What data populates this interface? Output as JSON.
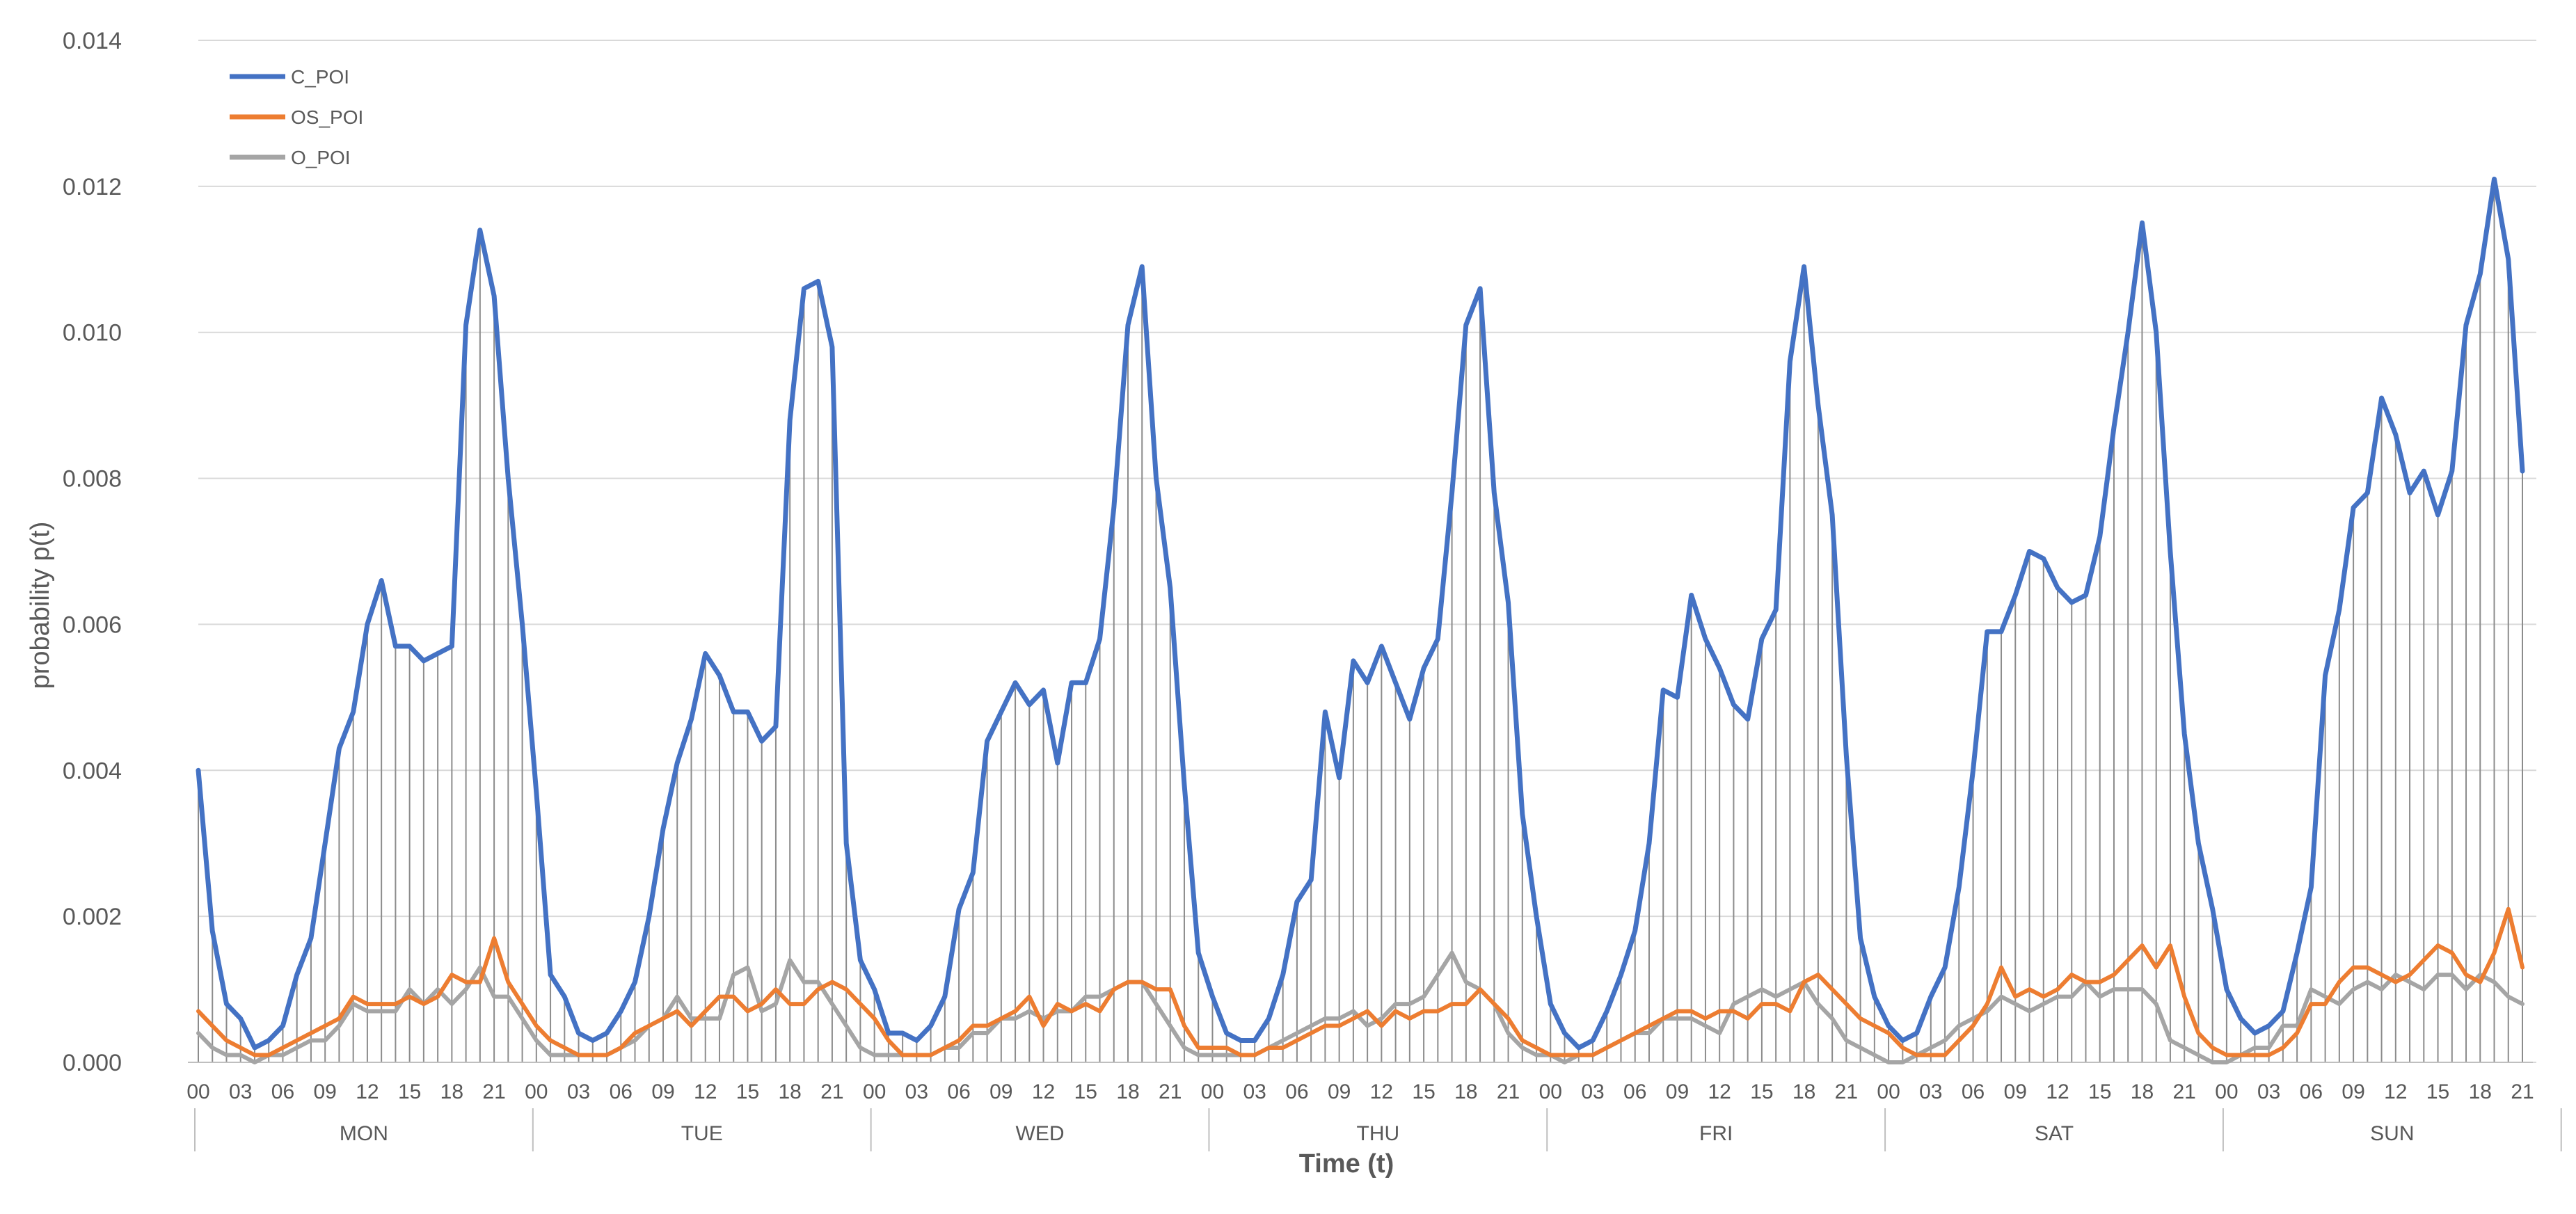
{
  "chart_data": {
    "type": "line",
    "xlabel": "Time (t)",
    "ylabel": "probability p(t)",
    "ylim": [
      0,
      0.014
    ],
    "yticks": [
      "0.000",
      "0.002",
      "0.004",
      "0.006",
      "0.008",
      "0.010",
      "0.012",
      "0.014"
    ],
    "hour_tick_labels": [
      "00",
      "03",
      "06",
      "09",
      "12",
      "15",
      "18",
      "21"
    ],
    "days": [
      "MON",
      "TUE",
      "WED",
      "THU",
      "FRI",
      "SAT",
      "SUN"
    ],
    "grid": true,
    "legend_position": "top-left",
    "drop_lines": true,
    "series": [
      {
        "name": "C_POI",
        "color": "#4472C4",
        "values": [
          0.004,
          0.0018,
          0.0008,
          0.0006,
          0.0002,
          0.0003,
          0.0005,
          0.0012,
          0.0017,
          0.003,
          0.0043,
          0.0048,
          0.006,
          0.0066,
          0.0057,
          0.0057,
          0.0055,
          0.0056,
          0.0057,
          0.0101,
          0.0114,
          0.0105,
          0.008,
          0.006,
          0.0037,
          0.0012,
          0.0009,
          0.0004,
          0.0003,
          0.0004,
          0.0007,
          0.0011,
          0.002,
          0.0032,
          0.0041,
          0.0047,
          0.0056,
          0.0053,
          0.0048,
          0.0048,
          0.0044,
          0.0046,
          0.0088,
          0.0106,
          0.0107,
          0.0098,
          0.003,
          0.0014,
          0.001,
          0.0004,
          0.0004,
          0.0003,
          0.0005,
          0.0009,
          0.0021,
          0.0026,
          0.0044,
          0.0048,
          0.0052,
          0.0049,
          0.0051,
          0.0041,
          0.0052,
          0.0052,
          0.0058,
          0.0076,
          0.0101,
          0.0109,
          0.008,
          0.0065,
          0.0038,
          0.0015,
          0.0009,
          0.0004,
          0.0003,
          0.0003,
          0.0006,
          0.0012,
          0.0022,
          0.0025,
          0.0048,
          0.0039,
          0.0055,
          0.0052,
          0.0057,
          0.0052,
          0.0047,
          0.0054,
          0.0058,
          0.0078,
          0.0101,
          0.0106,
          0.0078,
          0.0063,
          0.0034,
          0.002,
          0.0008,
          0.0004,
          0.0002,
          0.0003,
          0.0007,
          0.0012,
          0.0018,
          0.003,
          0.0051,
          0.005,
          0.0064,
          0.0058,
          0.0054,
          0.0049,
          0.0047,
          0.0058,
          0.0062,
          0.0096,
          0.0109,
          0.009,
          0.0075,
          0.0042,
          0.0017,
          0.0009,
          0.0005,
          0.0003,
          0.0004,
          0.0009,
          0.0013,
          0.0024,
          0.004,
          0.0059,
          0.0059,
          0.0064,
          0.007,
          0.0069,
          0.0065,
          0.0063,
          0.0064,
          0.0072,
          0.0087,
          0.01,
          0.0115,
          0.01,
          0.007,
          0.0045,
          0.003,
          0.0021,
          0.001,
          0.0006,
          0.0004,
          0.0005,
          0.0007,
          0.0015,
          0.0024,
          0.0053,
          0.0062,
          0.0076,
          0.0078,
          0.0091,
          0.0086,
          0.0078,
          0.0081,
          0.0075,
          0.0081,
          0.0101,
          0.0108,
          0.0121,
          0.011,
          0.0081
        ]
      },
      {
        "name": "OS_POI",
        "color": "#ED7D31",
        "values": [
          0.0007,
          0.0005,
          0.0003,
          0.0002,
          0.0001,
          0.0001,
          0.0002,
          0.0003,
          0.0004,
          0.0005,
          0.0006,
          0.0009,
          0.0008,
          0.0008,
          0.0008,
          0.0009,
          0.0008,
          0.0009,
          0.0012,
          0.0011,
          0.0011,
          0.0017,
          0.0011,
          0.0008,
          0.0005,
          0.0003,
          0.0002,
          0.0001,
          0.0001,
          0.0001,
          0.0002,
          0.0004,
          0.0005,
          0.0006,
          0.0007,
          0.0005,
          0.0007,
          0.0009,
          0.0009,
          0.0007,
          0.0008,
          0.001,
          0.0008,
          0.0008,
          0.001,
          0.0011,
          0.001,
          0.0008,
          0.0006,
          0.0003,
          0.0001,
          0.0001,
          0.0001,
          0.0002,
          0.0003,
          0.0005,
          0.0005,
          0.0006,
          0.0007,
          0.0009,
          0.0005,
          0.0008,
          0.0007,
          0.0008,
          0.0007,
          0.001,
          0.0011,
          0.0011,
          0.001,
          0.001,
          0.0005,
          0.0002,
          0.0002,
          0.0002,
          0.0001,
          0.0001,
          0.0002,
          0.0002,
          0.0003,
          0.0004,
          0.0005,
          0.0005,
          0.0006,
          0.0007,
          0.0005,
          0.0007,
          0.0006,
          0.0007,
          0.0007,
          0.0008,
          0.0008,
          0.001,
          0.0008,
          0.0006,
          0.0003,
          0.0002,
          0.0001,
          0.0001,
          0.0001,
          0.0001,
          0.0002,
          0.0003,
          0.0004,
          0.0005,
          0.0006,
          0.0007,
          0.0007,
          0.0006,
          0.0007,
          0.0007,
          0.0006,
          0.0008,
          0.0008,
          0.0007,
          0.0011,
          0.0012,
          0.001,
          0.0008,
          0.0006,
          0.0005,
          0.0004,
          0.0002,
          0.0001,
          0.0001,
          0.0001,
          0.0003,
          0.0005,
          0.0008,
          0.0013,
          0.0009,
          0.001,
          0.0009,
          0.001,
          0.0012,
          0.0011,
          0.0011,
          0.0012,
          0.0014,
          0.0016,
          0.0013,
          0.0016,
          0.0009,
          0.0004,
          0.0002,
          0.0001,
          0.0001,
          0.0001,
          0.0001,
          0.0002,
          0.0004,
          0.0008,
          0.0008,
          0.0011,
          0.0013,
          0.0013,
          0.0012,
          0.0011,
          0.0012,
          0.0014,
          0.0016,
          0.0015,
          0.0012,
          0.0011,
          0.0015,
          0.0021,
          0.0013
        ]
      },
      {
        "name": "O_POI",
        "color": "#A5A5A5",
        "values": [
          0.0004,
          0.0002,
          0.0001,
          0.0001,
          0.0,
          0.0001,
          0.0001,
          0.0002,
          0.0003,
          0.0003,
          0.0005,
          0.0008,
          0.0007,
          0.0007,
          0.0007,
          0.001,
          0.0008,
          0.001,
          0.0008,
          0.001,
          0.0013,
          0.0009,
          0.0009,
          0.0006,
          0.0003,
          0.0001,
          0.0001,
          0.0001,
          0.0001,
          0.0001,
          0.0002,
          0.0003,
          0.0005,
          0.0006,
          0.0009,
          0.0006,
          0.0006,
          0.0006,
          0.0012,
          0.0013,
          0.0007,
          0.0008,
          0.0014,
          0.0011,
          0.0011,
          0.0008,
          0.0005,
          0.0002,
          0.0001,
          0.0001,
          0.0001,
          0.0001,
          0.0001,
          0.0002,
          0.0002,
          0.0004,
          0.0004,
          0.0006,
          0.0006,
          0.0007,
          0.0006,
          0.0007,
          0.0007,
          0.0009,
          0.0009,
          0.001,
          0.0011,
          0.0011,
          0.0008,
          0.0005,
          0.0002,
          0.0001,
          0.0001,
          0.0001,
          0.0001,
          0.0001,
          0.0002,
          0.0003,
          0.0004,
          0.0005,
          0.0006,
          0.0006,
          0.0007,
          0.0005,
          0.0006,
          0.0008,
          0.0008,
          0.0009,
          0.0012,
          0.0015,
          0.0011,
          0.001,
          0.0008,
          0.0004,
          0.0002,
          0.0001,
          0.0001,
          0.0,
          0.0001,
          0.0001,
          0.0002,
          0.0003,
          0.0004,
          0.0004,
          0.0006,
          0.0006,
          0.0006,
          0.0005,
          0.0004,
          0.0008,
          0.0009,
          0.001,
          0.0009,
          0.001,
          0.0011,
          0.0008,
          0.0006,
          0.0003,
          0.0002,
          0.0001,
          0.0,
          0.0,
          0.0001,
          0.0002,
          0.0003,
          0.0005,
          0.0006,
          0.0007,
          0.0009,
          0.0008,
          0.0007,
          0.0008,
          0.0009,
          0.0009,
          0.0011,
          0.0009,
          0.001,
          0.001,
          0.001,
          0.0008,
          0.0003,
          0.0002,
          0.0001,
          0.0,
          0.0,
          0.0001,
          0.0002,
          0.0002,
          0.0005,
          0.0005,
          0.001,
          0.0009,
          0.0008,
          0.001,
          0.0011,
          0.001,
          0.0012,
          0.0011,
          0.001,
          0.0012,
          0.0012,
          0.001,
          0.0012,
          0.0011,
          0.0009,
          0.0008
        ]
      }
    ]
  }
}
